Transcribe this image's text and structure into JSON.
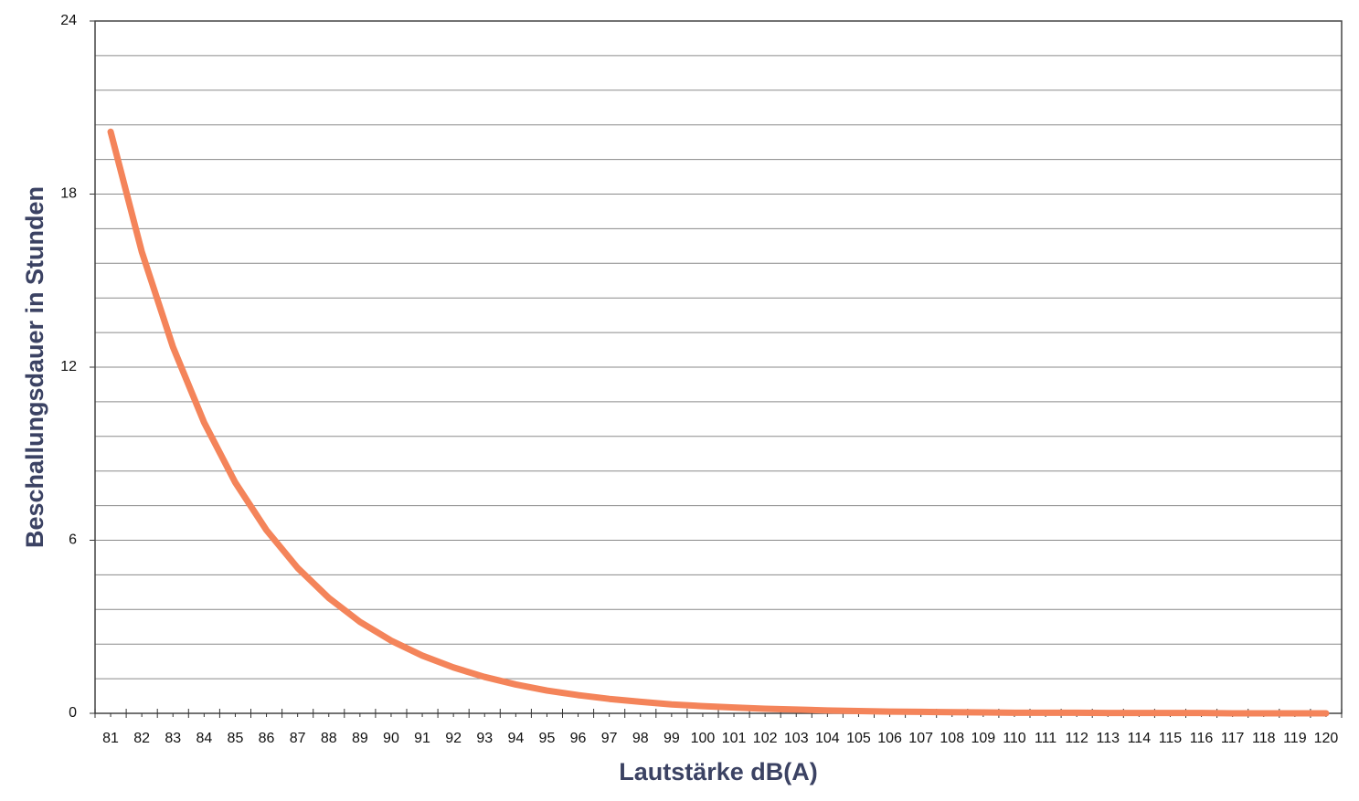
{
  "chart_data": {
    "type": "line",
    "x_label": "Lautstärke dB(A)",
    "y_label": "Beschallungsdauer in Stunden",
    "categories": [
      "81",
      "82",
      "83",
      "84",
      "85",
      "86",
      "87",
      "88",
      "89",
      "90",
      "91",
      "92",
      "93",
      "94",
      "95",
      "96",
      "97",
      "98",
      "99",
      "100",
      "101",
      "102",
      "103",
      "104",
      "105",
      "106",
      "107",
      "108",
      "109",
      "110",
      "111",
      "112",
      "113",
      "114",
      "115",
      "116",
      "117",
      "118",
      "119",
      "120"
    ],
    "series": [
      {
        "color": "#f4845a",
        "values": [
          20.16,
          16.0,
          12.7,
          10.08,
          8,
          6.35,
          5.04,
          4,
          3.17,
          2.52,
          2,
          1.59,
          1.26,
          1,
          0.79,
          0.63,
          0.5,
          0.4,
          0.31,
          0.25,
          0.2,
          0.16,
          0.13,
          0.1,
          0.08,
          0.06,
          0.05,
          0.04,
          0.03,
          0.02,
          0.02,
          0.02,
          0.01,
          0.01,
          0.01,
          0.01,
          0,
          0,
          0,
          0
        ]
      }
    ],
    "ylim": [
      0,
      24
    ],
    "yticks": [
      0,
      6,
      12,
      18,
      24
    ],
    "ygrid": [
      1.2,
      2.4,
      3.6,
      4.8,
      6,
      7.2,
      8.4,
      9.6,
      10.8,
      12,
      13.2,
      14.4,
      15.6,
      16.8,
      18,
      19.2,
      20.4,
      21.6,
      22.8
    ],
    "grid": true
  }
}
